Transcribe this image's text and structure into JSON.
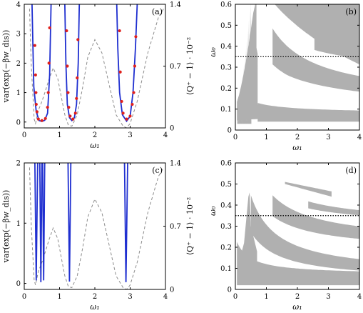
{
  "chart_data": [
    {
      "panel": "(a)",
      "type": "line",
      "xlabel": "ω₁",
      "ylabel_left": "var(exp(−βw_dis))",
      "ylabel_right": "⟨Q⁺ − 1⟩ · 10⁻²",
      "xlim": [
        0,
        4
      ],
      "ylim_left": [
        -0.2,
        4
      ],
      "ylim_right": [
        0,
        1.4
      ],
      "xticks": [
        "0",
        "1",
        "2",
        "3",
        "4"
      ],
      "yticks_left": [
        "0",
        "1",
        "2",
        "3",
        "4"
      ],
      "yticks_right": [
        "0",
        "0.7",
        "1.4"
      ],
      "series": [
        {
          "style": "solid-blue",
          "segments": [
            [
              [
                0.22,
                4.0
              ],
              [
                0.27,
                1.2
              ],
              [
                0.34,
                0.35
              ],
              [
                0.42,
                0.05
              ],
              [
                0.5,
                0.02
              ],
              [
                0.58,
                0.06
              ],
              [
                0.66,
                0.3
              ],
              [
                0.72,
                1.6
              ],
              [
                0.76,
                4.0
              ]
            ],
            [
              [
                1.15,
                4.0
              ],
              [
                1.18,
                2.0
              ],
              [
                1.22,
                0.6
              ],
              [
                1.28,
                0.15
              ],
              [
                1.35,
                0.05
              ],
              [
                1.42,
                0.15
              ],
              [
                1.48,
                0.6
              ],
              [
                1.53,
                2.0
              ],
              [
                1.56,
                4.0
              ]
            ],
            [
              [
                2.62,
                4.0
              ],
              [
                2.65,
                2.5
              ],
              [
                2.7,
                1.0
              ],
              [
                2.78,
                0.25
              ],
              [
                2.9,
                0.03
              ],
              [
                3.0,
                0.2
              ],
              [
                3.08,
                1.0
              ],
              [
                3.15,
                2.5
              ],
              [
                3.2,
                4.0
              ]
            ]
          ]
        },
        {
          "style": "red-markers",
          "points": [
            [
              0.3,
              2.6
            ],
            [
              0.32,
              1.6
            ],
            [
              0.33,
              1.0
            ],
            [
              0.34,
              0.6
            ],
            [
              0.36,
              0.35
            ],
            [
              0.4,
              0.1
            ],
            [
              0.5,
              0.05
            ],
            [
              0.6,
              0.12
            ],
            [
              0.66,
              0.5
            ],
            [
              0.68,
              1.0
            ],
            [
              0.7,
              2.0
            ],
            [
              0.72,
              3.2
            ],
            [
              1.2,
              3.1
            ],
            [
              1.22,
              1.9
            ],
            [
              1.24,
              1.0
            ],
            [
              1.26,
              0.5
            ],
            [
              1.3,
              0.2
            ],
            [
              1.38,
              0.1
            ],
            [
              1.45,
              0.3
            ],
            [
              1.48,
              0.8
            ],
            [
              1.5,
              1.5
            ],
            [
              1.52,
              2.8
            ],
            [
              2.7,
              3.1
            ],
            [
              2.72,
              1.7
            ],
            [
              2.76,
              0.7
            ],
            [
              2.8,
              0.3
            ],
            [
              2.9,
              0.1
            ],
            [
              3.0,
              0.2
            ],
            [
              3.06,
              0.6
            ],
            [
              3.1,
              1.0
            ],
            [
              3.13,
              1.9
            ],
            [
              3.16,
              2.9
            ]
          ]
        },
        {
          "style": "dashed-gray",
          "axis": "right",
          "points": [
            [
              0.15,
              1.35
            ],
            [
              0.2,
              0.7
            ],
            [
              0.28,
              0.1
            ],
            [
              0.32,
              0.05
            ],
            [
              0.4,
              0.2
            ],
            [
              0.5,
              0.3
            ],
            [
              0.6,
              0.42
            ],
            [
              0.7,
              0.55
            ],
            [
              0.82,
              0.68
            ],
            [
              0.95,
              0.56
            ],
            [
              1.05,
              0.35
            ],
            [
              1.15,
              0.15
            ],
            [
              1.25,
              0.03
            ],
            [
              1.35,
              0.02
            ],
            [
              1.5,
              0.15
            ],
            [
              1.65,
              0.45
            ],
            [
              1.8,
              0.8
            ],
            [
              2.0,
              1.0
            ],
            [
              2.2,
              0.85
            ],
            [
              2.4,
              0.5
            ],
            [
              2.6,
              0.15
            ],
            [
              2.8,
              0.02
            ],
            [
              2.9,
              0.0
            ],
            [
              3.0,
              0.05
            ],
            [
              3.2,
              0.3
            ],
            [
              3.5,
              0.85
            ],
            [
              3.8,
              1.25
            ],
            [
              3.95,
              1.35
            ]
          ]
        }
      ]
    },
    {
      "panel": "(b)",
      "type": "area",
      "xlabel": "ω₁",
      "ylabel": "ω₀",
      "xlim": [
        0,
        4
      ],
      "ylim": [
        0,
        0.6
      ],
      "xticks": [
        "0",
        "1",
        "2",
        "3",
        "4"
      ],
      "yticks": [
        "0",
        "0.1",
        "0.2",
        "0.3",
        "0.4",
        "0.5",
        "0.6"
      ],
      "hline": 0.35,
      "fill_color": "#b0b0b0"
    },
    {
      "panel": "(c)",
      "type": "line",
      "xlabel": "ω₁",
      "ylabel_left": "var(exp(−βw_dis))",
      "ylabel_right": "⟨Q⁺ − 1⟩ · 10⁻²",
      "xlim": [
        0,
        4
      ],
      "ylim_left": [
        -0.1,
        2
      ],
      "ylim_right": [
        0,
        1.4
      ],
      "xticks": [
        "0",
        "1",
        "2",
        "3",
        "4"
      ],
      "yticks_left": [
        "0",
        "1",
        "2"
      ],
      "yticks_right": [
        "0",
        "0.7",
        "1.4"
      ],
      "series": [
        {
          "style": "solid-blue",
          "segments": [
            [
              [
                0.3,
                2.0
              ],
              [
                0.34,
                0.05
              ],
              [
                0.38,
                2.0
              ]
            ],
            [
              [
                0.44,
                2.0
              ],
              [
                0.47,
                0.02
              ],
              [
                0.5,
                2.0
              ]
            ],
            [
              [
                0.52,
                2.0
              ],
              [
                0.55,
                0.05
              ],
              [
                0.58,
                2.0
              ]
            ],
            [
              [
                1.24,
                2.0
              ],
              [
                1.28,
                0.03
              ],
              [
                1.32,
                2.0
              ]
            ],
            [
              [
                2.84,
                2.0
              ],
              [
                2.88,
                0.02
              ],
              [
                2.93,
                2.0
              ]
            ]
          ]
        },
        {
          "style": "dashed-gray",
          "axis": "right",
          "points": [
            [
              0.15,
              1.35
            ],
            [
              0.2,
              0.7
            ],
            [
              0.28,
              0.1
            ],
            [
              0.32,
              0.05
            ],
            [
              0.4,
              0.2
            ],
            [
              0.5,
              0.3
            ],
            [
              0.6,
              0.42
            ],
            [
              0.7,
              0.55
            ],
            [
              0.82,
              0.68
            ],
            [
              0.95,
              0.56
            ],
            [
              1.05,
              0.35
            ],
            [
              1.15,
              0.15
            ],
            [
              1.25,
              0.03
            ],
            [
              1.35,
              0.02
            ],
            [
              1.5,
              0.15
            ],
            [
              1.65,
              0.45
            ],
            [
              1.8,
              0.8
            ],
            [
              2.0,
              1.0
            ],
            [
              2.2,
              0.85
            ],
            [
              2.4,
              0.5
            ],
            [
              2.6,
              0.15
            ],
            [
              2.8,
              0.02
            ],
            [
              2.9,
              0.0
            ],
            [
              3.0,
              0.05
            ],
            [
              3.2,
              0.3
            ],
            [
              3.5,
              0.85
            ],
            [
              3.8,
              1.25
            ],
            [
              3.95,
              1.35
            ]
          ]
        }
      ]
    },
    {
      "panel": "(d)",
      "type": "area",
      "xlabel": "ω₁",
      "ylabel": "ω₀",
      "xlim": [
        0,
        4
      ],
      "ylim": [
        0,
        0.6
      ],
      "xticks": [
        "0",
        "1",
        "2",
        "3",
        "4"
      ],
      "yticks": [
        "0",
        "0.1",
        "0.2",
        "0.3",
        "0.4",
        "0.5",
        "0.6"
      ],
      "hline": 0.35,
      "fill_color": "#b0b0b0"
    }
  ]
}
